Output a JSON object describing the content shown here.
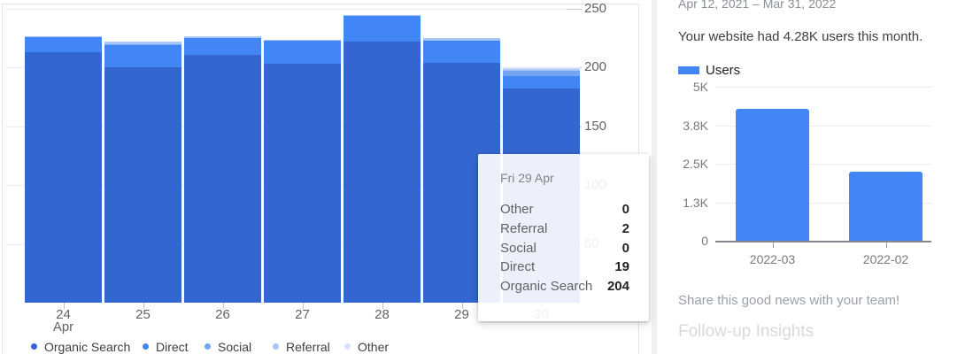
{
  "tooltip": {
    "title": "Fri 29 Apr",
    "rows": [
      {
        "label": "Other",
        "value": "0"
      },
      {
        "label": "Referral",
        "value": "2"
      },
      {
        "label": "Social",
        "value": "0"
      },
      {
        "label": "Direct",
        "value": "19"
      },
      {
        "label": "Organic Search",
        "value": "204"
      }
    ]
  },
  "right_panel": {
    "date_range": "Apr 12, 2021 – Mar 31, 2022",
    "headline": "Your website had 4.28K users this month.",
    "legend_label": "Users",
    "share_text": "Share this good news with your team!",
    "followup_text": "Follow-up Insights"
  },
  "colors": {
    "organic_search": "#3366d0",
    "direct": "#4285f4",
    "social": "#75a4f3",
    "referral": "#a6c6f8",
    "other": "#d6e3fa",
    "users_bar": "#4285f4",
    "grid_line": "#eceef0",
    "axis_text": "#5f6368"
  },
  "chart_data": [
    {
      "type": "bar",
      "stacked": true,
      "categories": [
        "24 Apr",
        "25",
        "26",
        "27",
        "28",
        "29",
        "30"
      ],
      "series": [
        {
          "name": "Organic Search",
          "color": "#3366d0",
          "values": [
            213,
            200,
            211,
            203,
            222,
            204,
            182
          ]
        },
        {
          "name": "Direct",
          "color": "#4285f4",
          "values": [
            13,
            19,
            14,
            20,
            22,
            19,
            11
          ]
        },
        {
          "name": "Social",
          "color": "#75a4f3",
          "values": [
            0,
            1,
            0,
            0,
            0,
            0,
            4
          ]
        },
        {
          "name": "Referral",
          "color": "#a6c6f8",
          "values": [
            1,
            2,
            2,
            1,
            1,
            2,
            2
          ]
        },
        {
          "name": "Other",
          "color": "#d6e3fa",
          "values": [
            0,
            0,
            0,
            0,
            0,
            0,
            1
          ]
        }
      ],
      "xlabel": "",
      "ylabel": "",
      "ylim": [
        0,
        250
      ],
      "yticks": [
        250,
        200,
        150,
        100,
        50
      ],
      "ytick_labels": [
        "250",
        "200",
        "150",
        "100",
        "50"
      ],
      "x_labels": [
        {
          "line1": "24",
          "line2": "Apr"
        },
        {
          "line1": "25"
        },
        {
          "line1": "26"
        },
        {
          "line1": "27"
        },
        {
          "line1": "28"
        },
        {
          "line1": "29"
        },
        {
          "line1": "30"
        }
      ],
      "grid": true,
      "legend_position": "bottom",
      "yaxis_side": "right"
    },
    {
      "type": "bar",
      "series_name": "Users",
      "color": "#4285f4",
      "categories": [
        "2022-03",
        "2022-02"
      ],
      "values": [
        4280,
        2230
      ],
      "xlabel": "",
      "ylabel": "",
      "ylim": [
        0,
        5000
      ],
      "yticks": [
        5000,
        3750,
        2500,
        1250,
        0
      ],
      "ytick_labels": [
        "5K",
        "3.8K",
        "2.5K",
        "1.3K",
        "0"
      ],
      "grid": true,
      "yaxis_side": "left"
    }
  ]
}
